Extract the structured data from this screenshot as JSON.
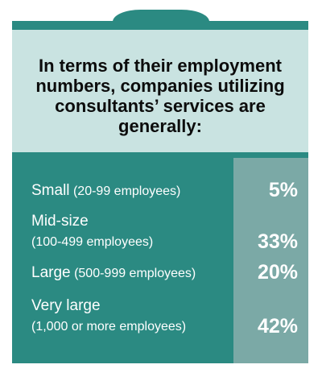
{
  "chart_data": {
    "type": "table",
    "title": "In terms of their employment numbers, companies utilizing consultants’ services are generally:",
    "rows": [
      {
        "category": "Small",
        "detail": "(20-99 employees)",
        "value": "5%",
        "percent": 5
      },
      {
        "category": "Mid-size",
        "detail": "(100-499 employees)",
        "value": "33%",
        "percent": 33
      },
      {
        "category": "Large",
        "detail": "(500-999 employees)",
        "value": "20%",
        "percent": 20
      },
      {
        "category": "Very large",
        "detail": "(1,000 or more employees)",
        "value": "42%",
        "percent": 42
      }
    ]
  },
  "colors": {
    "panel": "#2b8a82",
    "header_bg": "#c9e3e1",
    "value_column": "#7ba9a6",
    "text_light": "#ffffff",
    "text_dark": "#0c0c0c"
  }
}
